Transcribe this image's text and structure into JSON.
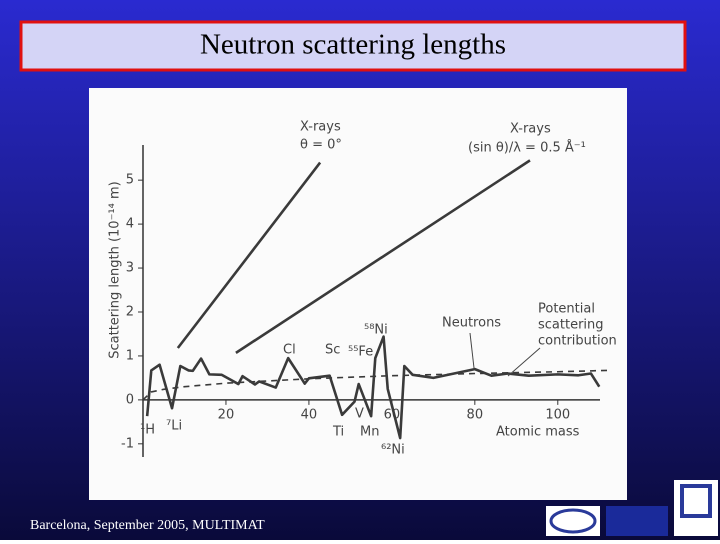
{
  "slide": {
    "title": "Neutron scattering lengths",
    "footer": "Barcelona, September 2005, MULTIMAT"
  },
  "chart_data": {
    "type": "line",
    "ylabel": "Scattering length (10⁻¹⁴ m)",
    "xlabel": "Atomic mass",
    "xlim": [
      0,
      115
    ],
    "ylim": [
      -1.3,
      5.8
    ],
    "xticks": [
      20,
      40,
      60,
      80,
      100
    ],
    "yticks": [
      -1,
      0,
      1,
      2,
      3,
      4,
      5
    ],
    "series": [
      {
        "color": "#3a3a3a",
        "style": "solid",
        "x": [
          1,
          2,
          4,
          7,
          9,
          11,
          12,
          14,
          16,
          19,
          23,
          24,
          27,
          28,
          32,
          35,
          39,
          40,
          45,
          48,
          51,
          52,
          55,
          56,
          58,
          59,
          62,
          63,
          65,
          70,
          75,
          80,
          84,
          88,
          93,
          100,
          105,
          108,
          110
        ],
        "values": [
          -0.37,
          0.67,
          0.8,
          -0.19,
          0.77,
          0.67,
          0.66,
          0.94,
          0.58,
          0.57,
          0.36,
          0.54,
          0.35,
          0.42,
          0.28,
          0.95,
          0.37,
          0.49,
          0.55,
          -0.34,
          -0.04,
          0.36,
          -0.37,
          0.95,
          1.44,
          0.25,
          -0.87,
          0.77,
          0.57,
          0.5,
          0.6,
          0.7,
          0.55,
          0.6,
          0.55,
          0.58,
          0.56,
          0.6,
          0.3
        ]
      },
      {
        "color": "#3a3a3a",
        "style": "dashed",
        "x": [
          0,
          2,
          5,
          10,
          20,
          40,
          60,
          80,
          100,
          112
        ],
        "values": [
          0,
          0.18,
          0.24,
          0.3,
          0.38,
          0.48,
          0.55,
          0.6,
          0.64,
          0.67
        ]
      },
      {
        "color": "#3a3a3a",
        "style": "solid",
        "x": [
          8.4,
          42.7
        ],
        "values": [
          1.18,
          5.4
        ]
      },
      {
        "color": "#3a3a3a",
        "style": "solid",
        "x": [
          22.4,
          93.3
        ],
        "values": [
          1.07,
          5.45
        ]
      }
    ],
    "annotations": [
      "X-rays",
      "θ = 0°",
      "X-rays",
      "(sin θ)/λ = 0.5 Å⁻¹",
      "Neutrons",
      "Potential",
      "scattering",
      "contribution"
    ],
    "element_labels": [
      "¹H",
      "⁷Li",
      "Cl",
      "Sc",
      "⁵⁸Ni",
      "⁵⁵Fe",
      "Ti",
      "V",
      "Mn",
      "⁶²Ni"
    ]
  }
}
